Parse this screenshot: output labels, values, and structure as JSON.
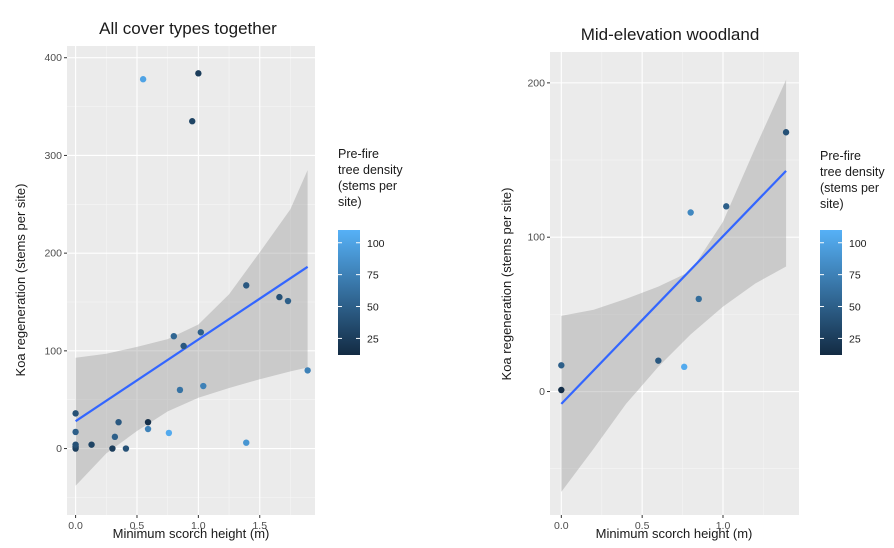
{
  "chart_data": [
    {
      "type": "scatter",
      "title": "All cover types together",
      "xlabel": "Minimum scorch height (m)",
      "ylabel": "Koa regeneration (stems per site)",
      "xlim": [
        -0.07,
        1.95
      ],
      "ylim": [
        -68,
        412
      ],
      "xticks": [
        0,
        0.5,
        1,
        1.5
      ],
      "xtick_labels": [
        "0.0",
        "0.5",
        "1.0",
        "1.5"
      ],
      "yticks": [
        0,
        100,
        200,
        300,
        400
      ],
      "ytick_labels": [
        "0",
        "100",
        "200",
        "300",
        "400"
      ],
      "grid": true,
      "points": [
        {
          "x": 0.0,
          "y": 0,
          "c": 25
        },
        {
          "x": 0.0,
          "y": 2,
          "c": 30
        },
        {
          "x": 0.0,
          "y": 4,
          "c": 40
        },
        {
          "x": 0.0,
          "y": 17,
          "c": 50
        },
        {
          "x": 0.0,
          "y": 36,
          "c": 40
        },
        {
          "x": 0.13,
          "y": 4,
          "c": 30
        },
        {
          "x": 0.3,
          "y": 0,
          "c": 25
        },
        {
          "x": 0.32,
          "y": 12,
          "c": 50
        },
        {
          "x": 0.35,
          "y": 27,
          "c": 45
        },
        {
          "x": 0.41,
          "y": 0,
          "c": 40
        },
        {
          "x": 0.55,
          "y": 378,
          "c": 100
        },
        {
          "x": 0.59,
          "y": 20,
          "c": 75
        },
        {
          "x": 0.59,
          "y": 27,
          "c": 15
        },
        {
          "x": 0.76,
          "y": 16,
          "c": 105
        },
        {
          "x": 0.8,
          "y": 115,
          "c": 55
        },
        {
          "x": 0.85,
          "y": 60,
          "c": 65
        },
        {
          "x": 0.88,
          "y": 105,
          "c": 45
        },
        {
          "x": 0.95,
          "y": 335,
          "c": 30
        },
        {
          "x": 1.0,
          "y": 384,
          "c": 25
        },
        {
          "x": 1.02,
          "y": 119,
          "c": 50
        },
        {
          "x": 1.04,
          "y": 64,
          "c": 75
        },
        {
          "x": 1.39,
          "y": 6,
          "c": 90
        },
        {
          "x": 1.39,
          "y": 167,
          "c": 45
        },
        {
          "x": 1.66,
          "y": 155,
          "c": 40
        },
        {
          "x": 1.73,
          "y": 151,
          "c": 50
        },
        {
          "x": 1.89,
          "y": 80,
          "c": 75
        }
      ],
      "fit_line": {
        "x": [
          0.0,
          1.89
        ],
        "y": [
          28,
          186
        ]
      },
      "confidence_band": {
        "x": [
          0.0,
          0.25,
          0.5,
          0.75,
          1.0,
          1.25,
          1.5,
          1.75,
          1.89
        ],
        "lower": [
          -38,
          -5,
          18,
          38,
          52,
          62,
          71,
          79,
          83
        ],
        "upper": [
          93,
          97,
          104,
          112,
          127,
          158,
          201,
          245,
          285
        ]
      },
      "colorbar": {
        "title_lines": [
          "Pre-fire",
          "tree density",
          "(stems per",
          "site)"
        ],
        "ticks": [
          25,
          50,
          75,
          100
        ],
        "range": [
          12,
          110
        ],
        "colors": [
          "#132b43",
          "#56b1f7"
        ]
      }
    },
    {
      "type": "scatter",
      "title": "Mid-elevation woodland",
      "xlabel": "Minimum scorch height (m)",
      "ylabel": "Koa regeneration (stems per site)",
      "xlim": [
        -0.07,
        1.47
      ],
      "ylim": [
        -80,
        220
      ],
      "xticks": [
        0,
        0.5,
        1
      ],
      "xtick_labels": [
        "0.0",
        "0.5",
        "1.0"
      ],
      "yticks": [
        0,
        100,
        200
      ],
      "ytick_labels": [
        "0",
        "100",
        "200"
      ],
      "grid": true,
      "points": [
        {
          "x": 0.0,
          "y": 1,
          "c": 15
        },
        {
          "x": 0.0,
          "y": 17,
          "c": 50
        },
        {
          "x": 0.6,
          "y": 20,
          "c": 45
        },
        {
          "x": 0.76,
          "y": 16,
          "c": 105
        },
        {
          "x": 0.8,
          "y": 116,
          "c": 80
        },
        {
          "x": 0.85,
          "y": 60,
          "c": 60
        },
        {
          "x": 1.02,
          "y": 120,
          "c": 50
        },
        {
          "x": 1.39,
          "y": 168,
          "c": 40
        }
      ],
      "fit_line": {
        "x": [
          0.0,
          1.39
        ],
        "y": [
          -8,
          143
        ]
      },
      "confidence_band": {
        "x": [
          0.0,
          0.2,
          0.4,
          0.6,
          0.8,
          1.0,
          1.2,
          1.39
        ],
        "lower": [
          -65,
          -37,
          -8,
          16,
          37,
          55,
          70,
          81
        ],
        "upper": [
          49,
          53,
          60,
          68,
          78,
          110,
          158,
          202
        ]
      },
      "colorbar": {
        "title_lines": [
          "Pre-fire",
          "tree density",
          "(stems per",
          "site)"
        ],
        "ticks": [
          25,
          50,
          75,
          100
        ],
        "range": [
          12,
          110
        ],
        "colors": [
          "#132b43",
          "#56b1f7"
        ]
      }
    }
  ]
}
